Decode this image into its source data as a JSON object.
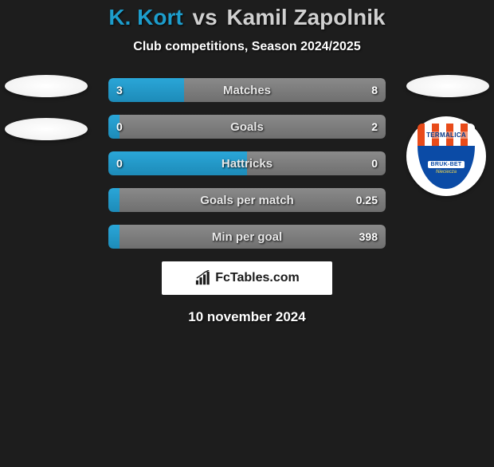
{
  "title": {
    "player1": "K. Kort",
    "vs": "vs",
    "player2": "Kamil Zapolnik"
  },
  "subtitle": "Club competitions, Season 2024/2025",
  "colors": {
    "player1_bar": "#1d9dcc",
    "player2_bar": "#7a7a7a",
    "background": "#1d1d1d"
  },
  "club_badge_right": {
    "top_text": "TERMALICA",
    "banner_text": "BRUK-BET",
    "sub_text": "Nieciecza",
    "stripe_color": "#e84b1a",
    "shield_color": "#0b4ba6"
  },
  "stats": [
    {
      "label": "Matches",
      "left_value": "3",
      "right_value": "8",
      "left_pct": 27.3,
      "right_pct": 72.7
    },
    {
      "label": "Goals",
      "left_value": "0",
      "right_value": "2",
      "left_pct": 4,
      "right_pct": 96
    },
    {
      "label": "Hattricks",
      "left_value": "0",
      "right_value": "0",
      "left_pct": 50,
      "right_pct": 50
    },
    {
      "label": "Goals per match",
      "left_value": "",
      "right_value": "0.25",
      "left_pct": 4,
      "right_pct": 96
    },
    {
      "label": "Min per goal",
      "left_value": "",
      "right_value": "398",
      "left_pct": 4,
      "right_pct": 96
    }
  ],
  "attribution": "FcTables.com",
  "date": "10 november 2024"
}
